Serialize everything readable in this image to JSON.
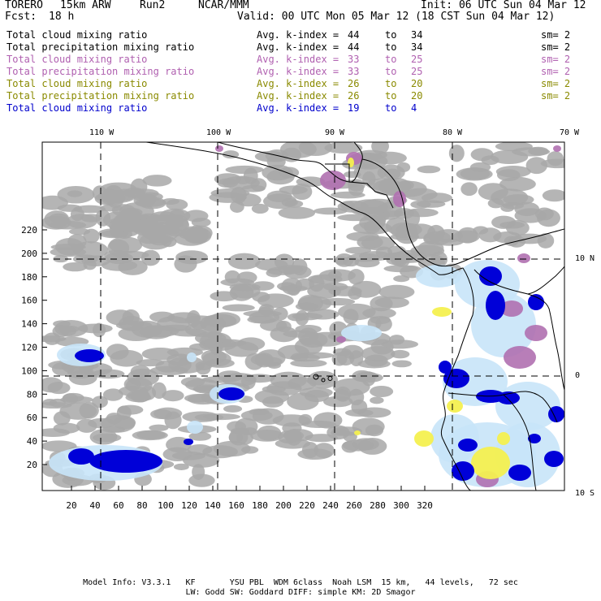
{
  "header": {
    "model": "TORERO",
    "resolution": "15km ARW",
    "run": "Run2",
    "org": "NCAR/MMM",
    "init": "Init: 06 UTC Sun 04 Mar 12",
    "fcst_label": "Fcst:",
    "fcst_value": "18 h",
    "valid": "Valid: 00 UTC Mon 05 Mar 12 (18 CST Sun 04 Mar 12)"
  },
  "legend": [
    {
      "field": "Total cloud mixing ratio",
      "stat": "Avg. k-index =",
      "from": "44",
      "to_word": "to",
      "to": "34",
      "sm": "sm= 2",
      "color": "#000000"
    },
    {
      "field": "Total precipitation mixing ratio",
      "stat": "Avg. k-index =",
      "from": "44",
      "to_word": "to",
      "to": "34",
      "sm": "sm= 2",
      "color": "#000000"
    },
    {
      "field": "Total cloud mixing ratio",
      "stat": "Avg. k-index =",
      "from": "33",
      "to_word": "to",
      "to": "25",
      "sm": "sm= 2",
      "color": "#b060b0"
    },
    {
      "field": "Total precipitation mixing ratio",
      "stat": "Avg. k-index =",
      "from": "33",
      "to_word": "to",
      "to": "25",
      "sm": "sm= 2",
      "color": "#b060b0"
    },
    {
      "field": "Total cloud mixing ratio",
      "stat": "Avg. k-index =",
      "from": "26",
      "to_word": "to",
      "to": "20",
      "sm": "sm= 2",
      "color": "#8a8a00"
    },
    {
      "field": "Total precipitation mixing ratio",
      "stat": "Avg. k-index =",
      "from": "26",
      "to_word": "to",
      "to": "20",
      "sm": "sm= 2",
      "color": "#8a8a00"
    },
    {
      "field": "Total cloud mixing ratio",
      "stat": "Avg. k-index =",
      "from": "19",
      "to_word": "to",
      "to": "4",
      "sm": "",
      "color": "#0000cc"
    }
  ],
  "map": {
    "lon_labels": [
      "110 W",
      "100 W",
      "90 W",
      "80 W",
      "70 W"
    ],
    "lat_labels": [
      "10 N",
      "0",
      "10 S"
    ],
    "x_ticks": [
      "20",
      "40",
      "60",
      "80",
      "100",
      "120",
      "140",
      "160",
      "180",
      "200",
      "220",
      "240",
      "260",
      "280",
      "300",
      "320"
    ],
    "y_ticks": [
      "20",
      "40",
      "60",
      "80",
      "100",
      "120",
      "140",
      "160",
      "180",
      "200",
      "220"
    ],
    "colors": {
      "cloud_gray": "#a8a8a8",
      "light_blue": "#c8e4f8",
      "blue": "#0000d8",
      "purple": "#b070b0",
      "yellow": "#f4f050",
      "frame": "#000000"
    }
  },
  "footer": {
    "line1": "Model Info: V3.3.1   KF       YSU PBL  WDM 6class  Noah LSM  15 km,   44 levels,   72 sec",
    "line2": "LW: Godd SW: Goddard DIFF: simple KM: 2D Smagor"
  }
}
